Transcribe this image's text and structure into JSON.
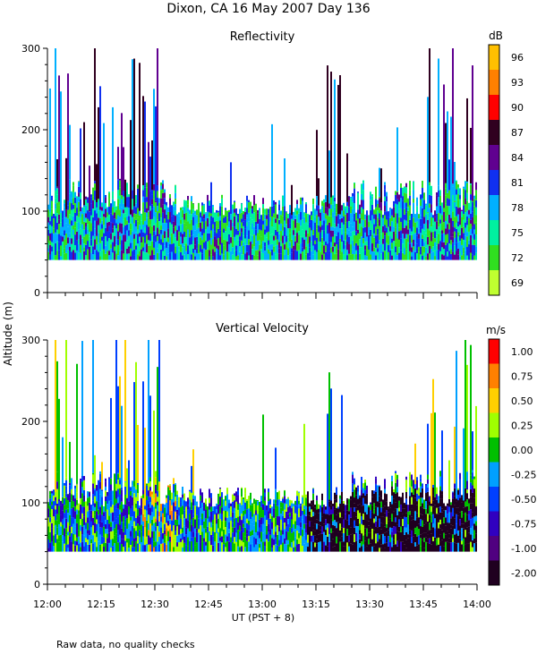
{
  "title": "Dixon, CA 16 May 2007  Day 136",
  "ylabel": "Altitude (m)",
  "xlabel": "UT  (PST + 8)",
  "note": "Raw data, no quality checks",
  "x_ticks": [
    "12:00",
    "12:15",
    "12:30",
    "12:45",
    "13:00",
    "13:15",
    "13:30",
    "13:45",
    "14:00"
  ],
  "chart_data": [
    {
      "type": "heatmap",
      "title": "Reflectivity",
      "xlabel": "UT  (PST + 8)",
      "ylabel": "Altitude (m)",
      "xlim": [
        "12:00",
        "14:00"
      ],
      "ylim": [
        0,
        300
      ],
      "y_ticks": [
        0,
        100,
        200,
        300
      ],
      "colorbar": {
        "unit": "dB",
        "ticks": [
          "96",
          "93",
          "90",
          "87",
          "84",
          "81",
          "78",
          "75",
          "72",
          "69"
        ],
        "colors": [
          "#ffc000",
          "#ff8000",
          "#ff0000",
          "#300020",
          "#600090",
          "#1030f0",
          "#00b0ff",
          "#00f0a0",
          "#30e020",
          "#c0ff30"
        ]
      },
      "summary": {
        "lowest_valid_altitude_m": 40,
        "dense_layer_top_m": 140,
        "sparse_echo_max_m": 300,
        "dominant_range_dB": "75-84"
      }
    },
    {
      "type": "heatmap",
      "title": "Vertical Velocity",
      "xlabel": "UT  (PST + 8)",
      "ylabel": "Altitude (m)",
      "xlim": [
        "12:00",
        "14:00"
      ],
      "ylim": [
        0,
        300
      ],
      "y_ticks": [
        0,
        100,
        200,
        300
      ],
      "colorbar": {
        "unit": "m/s",
        "ticks": [
          "1.00",
          "0.75",
          "0.50",
          "0.25",
          "0.00",
          "-0.25",
          "-0.50",
          "-0.75",
          "-1.00",
          "-2.00"
        ],
        "colors": [
          "#ff0000",
          "#ff8000",
          "#ffd000",
          "#a0ff00",
          "#00c000",
          "#00a0ff",
          "#0040ff",
          "#3000c0",
          "#500080",
          "#200020"
        ]
      },
      "summary": {
        "lowest_valid_altitude_m": 40,
        "dense_layer_top_m": 140,
        "strong_downdraft_period": "13:20-14:00",
        "strong_downdraft_top_m": 110
      }
    }
  ]
}
